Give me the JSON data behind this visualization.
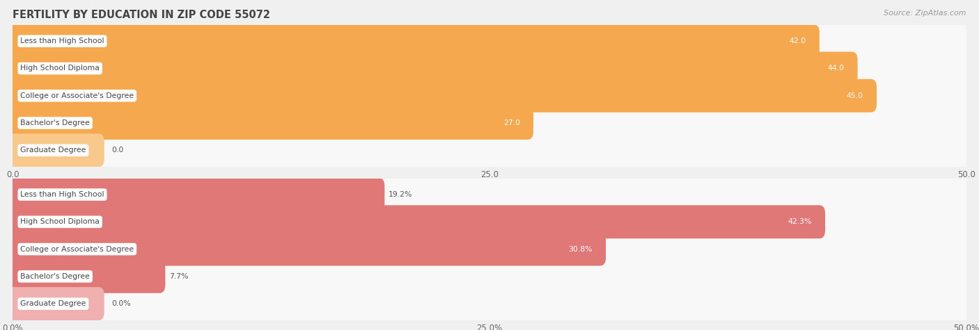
{
  "title": "FERTILITY BY EDUCATION IN ZIP CODE 55072",
  "source": "Source: ZipAtlas.com",
  "background_color": "#f0f0f0",
  "top_chart": {
    "categories": [
      "Less than High School",
      "High School Diploma",
      "College or Associate's Degree",
      "Bachelor's Degree",
      "Graduate Degree"
    ],
    "values": [
      42.0,
      44.0,
      45.0,
      27.0,
      0.0
    ],
    "bar_color": "#f5a84e",
    "bar_color_light": "#f8c98a",
    "label_values": [
      "42.0",
      "44.0",
      "45.0",
      "27.0",
      "0.0"
    ],
    "xlim": [
      0,
      50
    ],
    "xticks": [
      0.0,
      25.0,
      50.0
    ],
    "xtick_labels": [
      "0.0",
      "25.0",
      "50.0"
    ],
    "value_threshold": 20
  },
  "bottom_chart": {
    "categories": [
      "Less than High School",
      "High School Diploma",
      "College or Associate's Degree",
      "Bachelor's Degree",
      "Graduate Degree"
    ],
    "values": [
      19.2,
      42.3,
      30.8,
      7.7,
      0.0
    ],
    "bar_color": "#e07878",
    "bar_color_light": "#f0b0b0",
    "label_values": [
      "19.2%",
      "42.3%",
      "30.8%",
      "7.7%",
      "0.0%"
    ],
    "xlim": [
      0,
      50
    ],
    "xticks": [
      0.0,
      25.0,
      50.0
    ],
    "xtick_labels": [
      "0.0%",
      "25.0%",
      "50.0%"
    ],
    "value_threshold": 20
  },
  "row_bg_color": "#e8e8e8",
  "row_bg_color2": "#f8f8f8",
  "label_bg_color": "#ffffff",
  "text_color_dark": "#555555",
  "text_color_white": "#ffffff",
  "title_color": "#444444",
  "source_color": "#999999",
  "grid_color": "#d0d0d0"
}
